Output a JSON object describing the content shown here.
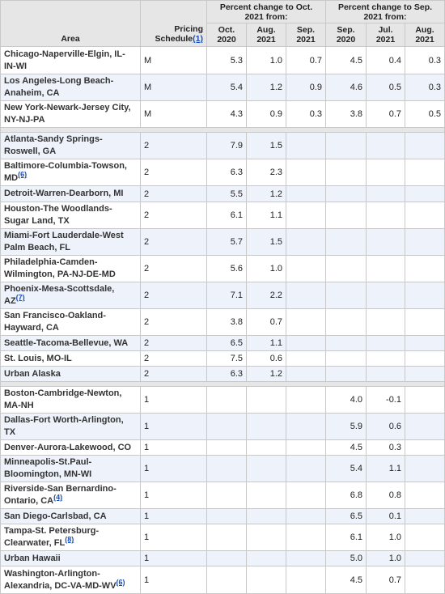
{
  "header": {
    "area": "Area",
    "schedule": "Pricing Schedule",
    "schedule_note": "(1)",
    "group1": "Percent change to Oct. 2021 from:",
    "group2": "Percent change to Sep. 2021 from:",
    "columns": [
      "Oct. 2020",
      "Aug. 2021",
      "Sep. 2021",
      "Sep. 2020",
      "Jul. 2021",
      "Aug. 2021"
    ]
  },
  "groups": [
    {
      "rows": [
        {
          "area": "Chicago-Naperville-Elgin, IL-IN-WI",
          "schedule": "M",
          "values": [
            "5.3",
            "1.0",
            "0.7",
            "4.5",
            "0.4",
            "0.3"
          ]
        },
        {
          "area": "Los Angeles-Long Beach-Anaheim, CA",
          "schedule": "M",
          "values": [
            "5.4",
            "1.2",
            "0.9",
            "4.6",
            "0.5",
            "0.3"
          ]
        },
        {
          "area": "New York-Newark-Jersey City, NY-NJ-PA",
          "schedule": "M",
          "values": [
            "4.3",
            "0.9",
            "0.3",
            "3.8",
            "0.7",
            "0.5"
          ]
        }
      ]
    },
    {
      "rows": [
        {
          "area": "Atlanta-Sandy Springs-Roswell, GA",
          "schedule": "2",
          "values": [
            "7.9",
            "1.5",
            null,
            null,
            null,
            null
          ]
        },
        {
          "area": "Baltimore-Columbia-Towson, MD",
          "note": "(6)",
          "schedule": "2",
          "values": [
            "6.3",
            "2.3",
            null,
            null,
            null,
            null
          ]
        },
        {
          "area": "Detroit-Warren-Dearborn, MI",
          "schedule": "2",
          "values": [
            "5.5",
            "1.2",
            null,
            null,
            null,
            null
          ]
        },
        {
          "area": "Houston-The Woodlands-Sugar Land, TX",
          "schedule": "2",
          "values": [
            "6.1",
            "1.1",
            null,
            null,
            null,
            null
          ]
        },
        {
          "area": "Miami-Fort Lauderdale-West Palm Beach, FL",
          "schedule": "2",
          "values": [
            "5.7",
            "1.5",
            null,
            null,
            null,
            null
          ]
        },
        {
          "area": "Philadelphia-Camden-Wilmington, PA-NJ-DE-MD",
          "schedule": "2",
          "values": [
            "5.6",
            "1.0",
            null,
            null,
            null,
            null
          ]
        },
        {
          "area": "Phoenix-Mesa-Scottsdale, AZ",
          "note": "(7)",
          "schedule": "2",
          "values": [
            "7.1",
            "2.2",
            null,
            null,
            null,
            null
          ]
        },
        {
          "area": "San Francisco-Oakland-Hayward, CA",
          "schedule": "2",
          "values": [
            "3.8",
            "0.7",
            null,
            null,
            null,
            null
          ]
        },
        {
          "area": "Seattle-Tacoma-Bellevue, WA",
          "schedule": "2",
          "values": [
            "6.5",
            "1.1",
            null,
            null,
            null,
            null
          ]
        },
        {
          "area": "St. Louis, MO-IL",
          "schedule": "2",
          "values": [
            "7.5",
            "0.6",
            null,
            null,
            null,
            null
          ]
        },
        {
          "area": "Urban Alaska",
          "schedule": "2",
          "values": [
            "6.3",
            "1.2",
            null,
            null,
            null,
            null
          ]
        }
      ]
    },
    {
      "rows": [
        {
          "area": "Boston-Cambridge-Newton, MA-NH",
          "schedule": "1",
          "values": [
            null,
            null,
            null,
            "4.0",
            "-0.1",
            null
          ]
        },
        {
          "area": "Dallas-Fort Worth-Arlington, TX",
          "schedule": "1",
          "values": [
            null,
            null,
            null,
            "5.9",
            "0.6",
            null
          ]
        },
        {
          "area": "Denver-Aurora-Lakewood, CO",
          "schedule": "1",
          "values": [
            null,
            null,
            null,
            "4.5",
            "0.3",
            null
          ]
        },
        {
          "area": "Minneapolis-St.Paul-Bloomington, MN-WI",
          "schedule": "1",
          "values": [
            null,
            null,
            null,
            "5.4",
            "1.1",
            null
          ]
        },
        {
          "area": "Riverside-San Bernardino-Ontario, CA",
          "note": "(4)",
          "schedule": "1",
          "values": [
            null,
            null,
            null,
            "6.8",
            "0.8",
            null
          ]
        },
        {
          "area": "San Diego-Carlsbad, CA",
          "schedule": "1",
          "values": [
            null,
            null,
            null,
            "6.5",
            "0.1",
            null
          ]
        },
        {
          "area": "Tampa-St. Petersburg-Clearwater, FL",
          "note": "(8)",
          "schedule": "1",
          "values": [
            null,
            null,
            null,
            "6.1",
            "1.0",
            null
          ]
        },
        {
          "area": "Urban Hawaii",
          "schedule": "1",
          "values": [
            null,
            null,
            null,
            "5.0",
            "1.0",
            null
          ]
        },
        {
          "area": "Washington-Arlington-Alexandria, DC-VA-MD-WV",
          "note": "(6)",
          "schedule": "1",
          "values": [
            null,
            null,
            null,
            "4.5",
            "0.7",
            null
          ]
        }
      ]
    }
  ]
}
